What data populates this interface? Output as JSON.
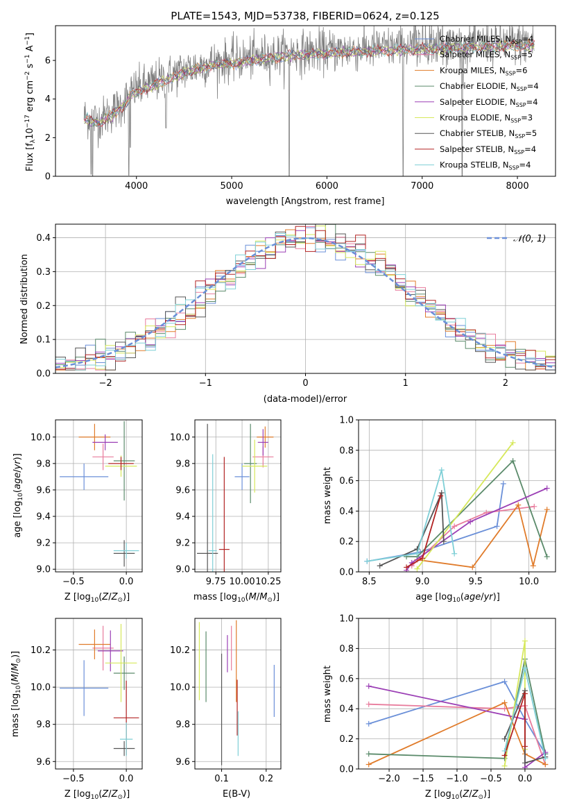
{
  "figure": {
    "title": "PLATE=1543, MJD=53738, FIBERID=0624, z=0.125"
  },
  "colors": {
    "data": "#808080",
    "models": [
      "#6a8fd8",
      "#e87b9c",
      "#e07b2a",
      "#5a8a6a",
      "#9b3fb5",
      "#d6e85a",
      "#555555",
      "#b22222",
      "#7ecfd6"
    ],
    "normal": "#6a8fd8"
  },
  "chart_data": [
    {
      "id": "spectrum",
      "type": "line",
      "xlabel": "wavelength [Angstrom, rest frame]",
      "ylabel": "Flux [f_λ 10^-17 erg cm^-2 s^-1 A^-1]",
      "xlim": [
        3150,
        8400
      ],
      "ylim": [
        0,
        7.8
      ],
      "xticks": [
        4000,
        5000,
        6000,
        7000,
        8000
      ],
      "yticks": [
        0,
        2,
        4,
        6
      ],
      "grid": false,
      "legend_position": "top-right",
      "legend": [
        {
          "pre": "Chabrier MILES, N",
          "sub": "SSP",
          "post": "=4"
        },
        {
          "pre": "Salpeter MILES, N",
          "sub": "SSP",
          "post": "=5"
        },
        {
          "pre": "Kroupa MILES, N",
          "sub": "SSP",
          "post": "=6"
        },
        {
          "pre": "Chabrier ELODIE, N",
          "sub": "SSP",
          "post": "=4"
        },
        {
          "pre": "Salpeter ELODIE, N",
          "sub": "SSP",
          "post": "=4"
        },
        {
          "pre": "Kroupa ELODIE, N",
          "sub": "SSP",
          "post": "=3"
        },
        {
          "pre": "Chabrier STELIB, N",
          "sub": "SSP",
          "post": "=5"
        },
        {
          "pre": "Salpeter STELIB, N",
          "sub": "SSP",
          "post": "=4"
        },
        {
          "pre": "Kroupa STELIB, N",
          "sub": "SSP",
          "post": "=4"
        }
      ],
      "continuum": [
        [
          3450,
          3.1
        ],
        [
          3600,
          2.9
        ],
        [
          3700,
          3.2
        ],
        [
          3850,
          3.7
        ],
        [
          3950,
          4.4
        ],
        [
          4100,
          4.7
        ],
        [
          4300,
          5.1
        ],
        [
          4500,
          5.5
        ],
        [
          4800,
          5.9
        ],
        [
          5000,
          6.0
        ],
        [
          5300,
          6.2
        ],
        [
          5600,
          6.4
        ],
        [
          6000,
          6.5
        ],
        [
          6400,
          6.6
        ],
        [
          6800,
          6.7
        ],
        [
          7200,
          6.75
        ],
        [
          7600,
          6.85
        ],
        [
          8000,
          6.9
        ],
        [
          8180,
          6.9
        ]
      ]
    },
    {
      "id": "residuals",
      "type": "histogram",
      "xlabel": "(data-model)/error",
      "ylabel": "Normed distribution",
      "xlim": [
        -2.5,
        2.5
      ],
      "ylim": [
        0,
        0.44
      ],
      "xticks": [
        -2,
        -1,
        0,
        1,
        2
      ],
      "yticks": [
        0.0,
        0.1,
        0.2,
        0.3,
        0.4
      ],
      "grid": true,
      "bin_width": 0.1,
      "legend_label": "N(0,1)",
      "legend_position": "top-right"
    },
    {
      "id": "age-vs-Z",
      "type": "scatter",
      "xlabel": "Z [log10(Z/Z_sun)]",
      "ylabel": "age [log10(age/yr)]",
      "xlim": [
        -0.67,
        0.15
      ],
      "ylim": [
        8.98,
        10.13
      ],
      "xticks": [
        -0.5,
        0.0
      ],
      "yticks": [
        9.0,
        9.2,
        9.4,
        9.6,
        9.8,
        10.0
      ],
      "grid": true,
      "points": [
        {
          "x": -0.4,
          "y": 9.7,
          "xe": 0.23,
          "ye": 0.1
        },
        {
          "x": -0.22,
          "y": 9.85,
          "xe": 0.1,
          "ye": 0.1
        },
        {
          "x": -0.3,
          "y": 10.0,
          "xe": 0.15,
          "ye": 0.1
        },
        {
          "x": -0.02,
          "y": 9.82,
          "xe": 0.1,
          "ye": 0.3
        },
        {
          "x": -0.2,
          "y": 9.96,
          "xe": 0.12,
          "ye": 0.06
        },
        {
          "x": -0.05,
          "y": 9.78,
          "xe": 0.15,
          "ye": 0.08
        },
        {
          "x": -0.02,
          "y": 9.12,
          "xe": 0.1,
          "ye": 0.1
        },
        {
          "x": -0.05,
          "y": 9.8,
          "xe": 0.12,
          "ye": 0.05
        },
        {
          "x": 0.0,
          "y": 9.14,
          "xe": 0.12,
          "ye": 0.06
        }
      ]
    },
    {
      "id": "age-vs-mass",
      "type": "scatter",
      "xlabel": "mass [log10(M/M_sun)]",
      "ylabel": "",
      "xlim": [
        9.55,
        10.37
      ],
      "ylim": [
        8.98,
        10.13
      ],
      "xticks": [
        9.75,
        10.0,
        10.25
      ],
      "yticks": [
        9.0,
        9.2,
        9.4,
        9.6,
        9.8,
        10.0
      ],
      "xticklabels": [
        "9.75",
        "10.00",
        "10.25"
      ],
      "grid": true,
      "points": [
        {
          "x": 10.0,
          "y": 9.7,
          "xe": 0.07,
          "ye": 0.1
        },
        {
          "x": 10.2,
          "y": 9.85,
          "xe": 0.1,
          "ye": 0.08
        },
        {
          "x": 10.22,
          "y": 10.0,
          "xe": 0.08,
          "ye": 0.08
        },
        {
          "x": 10.08,
          "y": 9.8,
          "xe": 0.06,
          "ye": 0.3
        },
        {
          "x": 10.2,
          "y": 9.96,
          "xe": 0.05,
          "ye": 0.1
        },
        {
          "x": 10.12,
          "y": 9.78,
          "xe": 0.12,
          "ye": 0.2
        },
        {
          "x": 9.67,
          "y": 9.12,
          "xe": 0.1,
          "ye": 0.98
        },
        {
          "x": 9.83,
          "y": 9.15,
          "xe": 0.05,
          "ye": 0.7
        },
        {
          "x": 9.72,
          "y": 9.14,
          "xe": 0.04,
          "ye": 0.73
        }
      ]
    },
    {
      "id": "massweight-vs-age",
      "type": "line",
      "xlabel": "age [log10(age/yr)]",
      "ylabel": "mass weight",
      "xlim": [
        8.4,
        10.25
      ],
      "ylim": [
        0,
        1.0
      ],
      "xticks": [
        8.5,
        9.0,
        9.5,
        10.0
      ],
      "yticks": [
        0.0,
        0.2,
        0.4,
        0.6,
        0.8,
        1.0
      ],
      "grid": true,
      "series": [
        {
          "values": [
            [
              8.48,
              0.07
            ],
            [
              8.98,
              0.13
            ],
            [
              9.7,
              0.3
            ],
            [
              9.76,
              0.58
            ]
          ]
        },
        {
          "values": [
            [
              8.9,
              0.04
            ],
            [
              9.3,
              0.3
            ],
            [
              9.6,
              0.39
            ],
            [
              10.05,
              0.43
            ]
          ]
        },
        {
          "values": [
            [
              8.95,
              0.08
            ],
            [
              9.47,
              0.03
            ],
            [
              9.9,
              0.44
            ],
            [
              10.04,
              0.04
            ],
            [
              10.17,
              0.41
            ]
          ]
        },
        {
          "values": [
            [
              8.85,
              0.1
            ],
            [
              8.95,
              0.1
            ],
            [
              9.85,
              0.73
            ],
            [
              10.17,
              0.1
            ]
          ]
        },
        {
          "values": [
            [
              8.85,
              0.01
            ],
            [
              8.9,
              0.06
            ],
            [
              9.45,
              0.33
            ],
            [
              10.17,
              0.55
            ]
          ]
        },
        {
          "values": [
            [
              8.95,
              0.02
            ],
            [
              9.85,
              0.85
            ]
          ]
        },
        {
          "values": [
            [
              8.6,
              0.04
            ],
            [
              8.95,
              0.15
            ],
            [
              9.18,
              0.52
            ],
            [
              9.2,
              0.2
            ]
          ]
        },
        {
          "values": [
            [
              8.85,
              0.03
            ],
            [
              9.0,
              0.09
            ],
            [
              9.17,
              0.5
            ]
          ]
        },
        {
          "values": [
            [
              8.48,
              0.07
            ],
            [
              8.95,
              0.12
            ],
            [
              9.18,
              0.67
            ],
            [
              9.3,
              0.12
            ]
          ]
        }
      ]
    },
    {
      "id": "mass-vs-Z",
      "type": "scatter",
      "xlabel": "Z [log10(Z/Z_sun)]",
      "ylabel": "mass [log10(M/M_sun)]",
      "xlim": [
        -0.67,
        0.15
      ],
      "ylim": [
        9.56,
        10.37
      ],
      "xticks": [
        -0.5,
        0.0
      ],
      "yticks": [
        9.6,
        9.8,
        10.0,
        10.2
      ],
      "grid": true,
      "points": [
        {
          "x": -0.4,
          "y": 9.995,
          "xe": 0.23,
          "ye": 0.15
        },
        {
          "x": -0.22,
          "y": 10.21,
          "xe": 0.1,
          "ye": 0.12
        },
        {
          "x": -0.3,
          "y": 10.23,
          "xe": 0.15,
          "ye": 0.08
        },
        {
          "x": -0.02,
          "y": 10.075,
          "xe": 0.1,
          "ye": 0.09
        },
        {
          "x": -0.15,
          "y": 10.195,
          "xe": 0.12,
          "ye": 0.11
        },
        {
          "x": -0.05,
          "y": 10.13,
          "xe": 0.15,
          "ye": 0.21
        },
        {
          "x": -0.02,
          "y": 9.67,
          "xe": 0.1,
          "ye": 0.04
        },
        {
          "x": 0.0,
          "y": 9.835,
          "xe": 0.12,
          "ye": 0.2
        },
        {
          "x": 0.0,
          "y": 9.72,
          "xe": 0.06,
          "ye": 0.09
        }
      ]
    },
    {
      "id": "mass-vs-EBV",
      "type": "scatter",
      "xlabel": "E(B-V)",
      "ylabel": "",
      "xlim": [
        0.04,
        0.233
      ],
      "ylim": [
        9.56,
        10.37
      ],
      "xticks": [
        0.1,
        0.2
      ],
      "yticks": [
        9.6,
        9.8,
        10.0,
        10.2
      ],
      "grid": true,
      "points": [
        {
          "x": 0.218,
          "y": 9.98,
          "ye": 0.14
        },
        {
          "x": 0.122,
          "y": 10.21,
          "ye": 0.12
        },
        {
          "x": 0.133,
          "y": 10.14,
          "ye": 0.22
        },
        {
          "x": 0.065,
          "y": 10.11,
          "ye": 0.19
        },
        {
          "x": 0.113,
          "y": 10.18,
          "ye": 0.1
        },
        {
          "x": 0.05,
          "y": 10.14,
          "ye": 0.21
        },
        {
          "x": 0.1,
          "y": 9.88,
          "ye": 0.3
        },
        {
          "x": 0.135,
          "y": 9.89,
          "ye": 0.15
        },
        {
          "x": 0.137,
          "y": 9.75,
          "ye": 0.12
        }
      ]
    },
    {
      "id": "massweight-vs-Z",
      "type": "line",
      "xlabel": "Z [log10(Z/Z_sun)]",
      "ylabel": "mass weight",
      "xlim": [
        -2.45,
        0.45
      ],
      "ylim": [
        0,
        1.0
      ],
      "xticks": [
        -2.0,
        -1.5,
        -1.0,
        -0.5,
        0.0
      ],
      "yticks": [
        0.0,
        0.2,
        0.4,
        0.6,
        0.8,
        1.0
      ],
      "grid": true,
      "series": [
        {
          "values": [
            [
              -2.3,
              0.3
            ],
            [
              -0.3,
              0.58
            ],
            [
              0.0,
              0.33
            ],
            [
              0.3,
              0.1
            ]
          ]
        },
        {
          "values": [
            [
              -2.3,
              0.43
            ],
            [
              -0.3,
              0.4
            ],
            [
              0.0,
              0.42
            ],
            [
              0.3,
              0.03
            ]
          ]
        },
        {
          "values": [
            [
              -2.3,
              0.03
            ],
            [
              -0.3,
              0.44
            ],
            [
              0.0,
              0.1
            ],
            [
              0.3,
              0.03
            ]
          ]
        },
        {
          "values": [
            [
              -2.3,
              0.1
            ],
            [
              -0.3,
              0.07
            ],
            [
              0.0,
              0.73
            ],
            [
              0.3,
              0.1
            ]
          ]
        },
        {
          "values": [
            [
              -2.3,
              0.55
            ],
            [
              0.0,
              0.33
            ],
            [
              0.0,
              0.01
            ],
            [
              0.3,
              0.11
            ]
          ]
        },
        {
          "values": [
            [
              -0.3,
              0.02
            ],
            [
              0.0,
              0.85
            ],
            [
              0.0,
              0.13
            ]
          ]
        },
        {
          "values": [
            [
              -0.3,
              0.2
            ],
            [
              0.0,
              0.52
            ],
            [
              0.0,
              0.04
            ],
            [
              0.3,
              0.08
            ]
          ]
        },
        {
          "values": [
            [
              -0.3,
              0.09
            ],
            [
              0.0,
              0.5
            ],
            [
              0.0,
              0.15
            ]
          ]
        },
        {
          "values": [
            [
              -0.3,
              0.12
            ],
            [
              0.0,
              0.67
            ],
            [
              0.3,
              0.07
            ]
          ]
        }
      ]
    }
  ]
}
